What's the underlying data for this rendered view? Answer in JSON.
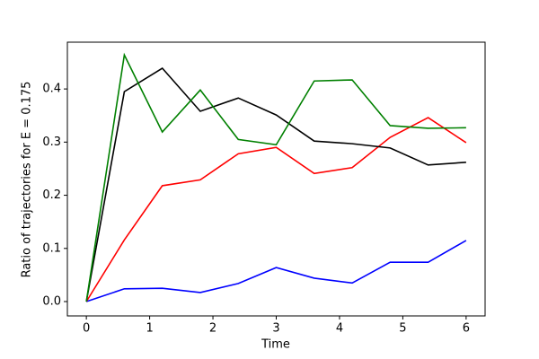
{
  "chart_data": {
    "type": "line",
    "xlabel": "Time",
    "ylabel": "Ratio of trajectories for E = 0.175",
    "x": [
      0,
      0.6,
      1.2,
      1.8,
      2.4,
      3.0,
      3.6,
      4.2,
      4.8,
      5.4,
      6.0
    ],
    "series": [
      {
        "color": "#0000ff",
        "values": [
          0,
          0.024,
          0.025,
          0.017,
          0.034,
          0.064,
          0.044,
          0.035,
          0.074,
          0.074,
          0.115
        ]
      },
      {
        "color": "#ff0000",
        "values": [
          0,
          0.116,
          0.218,
          0.229,
          0.278,
          0.29,
          0.241,
          0.252,
          0.309,
          0.346,
          0.299
        ]
      },
      {
        "color": "#000000",
        "values": [
          0,
          0.395,
          0.439,
          0.358,
          0.383,
          0.351,
          0.302,
          0.297,
          0.289,
          0.257,
          0.262
        ]
      },
      {
        "color": "#008000",
        "values": [
          0,
          0.464,
          0.319,
          0.398,
          0.305,
          0.295,
          0.415,
          0.417,
          0.331,
          0.326,
          0.327
        ]
      }
    ],
    "xlim": [
      -0.3,
      6.3
    ],
    "xticks": [
      0,
      1,
      2,
      3,
      4,
      5,
      6
    ],
    "ylim": [
      -0.027,
      0.488
    ],
    "yticks": [
      {
        "value": 0,
        "label": "0.0"
      },
      0.1,
      0.2,
      0.3,
      0.4
    ],
    "grid": false
  }
}
